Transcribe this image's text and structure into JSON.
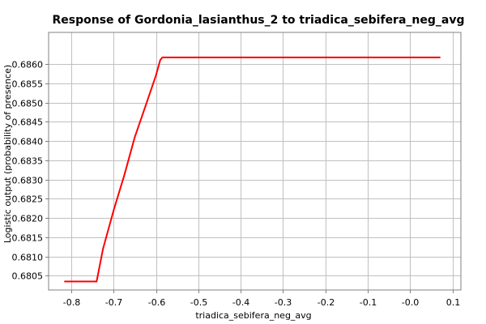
{
  "chart_data": {
    "type": "line",
    "title": "Response of Gordonia_lasianthus_2 to triadica_sebifera_neg_avg",
    "xlabel": "triadica_sebifera_neg_avg",
    "ylabel": "Logistic output (probability of presence)",
    "xlim": [
      -0.8535,
      0.12
    ],
    "ylim": [
      0.68013,
      0.68682
    ],
    "grid": true,
    "x_ticks": [
      {
        "value": -0.8,
        "label": "-0.8"
      },
      {
        "value": -0.7,
        "label": "-0.7"
      },
      {
        "value": -0.6,
        "label": "-0.6"
      },
      {
        "value": -0.5,
        "label": "-0.5"
      },
      {
        "value": -0.4,
        "label": "-0.4"
      },
      {
        "value": -0.3,
        "label": "-0.3"
      },
      {
        "value": -0.2,
        "label": "-0.2"
      },
      {
        "value": -0.1,
        "label": "-0.1"
      },
      {
        "value": 0.0,
        "label": "-0.0"
      },
      {
        "value": 0.1,
        "label": "0.1"
      }
    ],
    "y_ticks": [
      {
        "value": 0.6805,
        "label": "0.6805"
      },
      {
        "value": 0.681,
        "label": "0.6810"
      },
      {
        "value": 0.6815,
        "label": "0.6815"
      },
      {
        "value": 0.682,
        "label": "0.6820"
      },
      {
        "value": 0.6825,
        "label": "0.6825"
      },
      {
        "value": 0.683,
        "label": "0.6830"
      },
      {
        "value": 0.6835,
        "label": "0.6835"
      },
      {
        "value": 0.684,
        "label": "0.6840"
      },
      {
        "value": 0.6845,
        "label": "0.6845"
      },
      {
        "value": 0.685,
        "label": "0.6850"
      },
      {
        "value": 0.6855,
        "label": "0.6855"
      },
      {
        "value": 0.686,
        "label": "0.6860"
      }
    ],
    "series": [
      {
        "color": "#ff0000",
        "x": [
          -0.815,
          -0.74,
          -0.725,
          -0.7,
          -0.675,
          -0.65,
          -0.625,
          -0.6,
          -0.59,
          -0.585,
          0.07
        ],
        "y": [
          0.68035,
          0.68035,
          0.6812,
          0.6822,
          0.6831,
          0.6841,
          0.6849,
          0.6857,
          0.6861,
          0.68617,
          0.68617
        ]
      }
    ]
  }
}
